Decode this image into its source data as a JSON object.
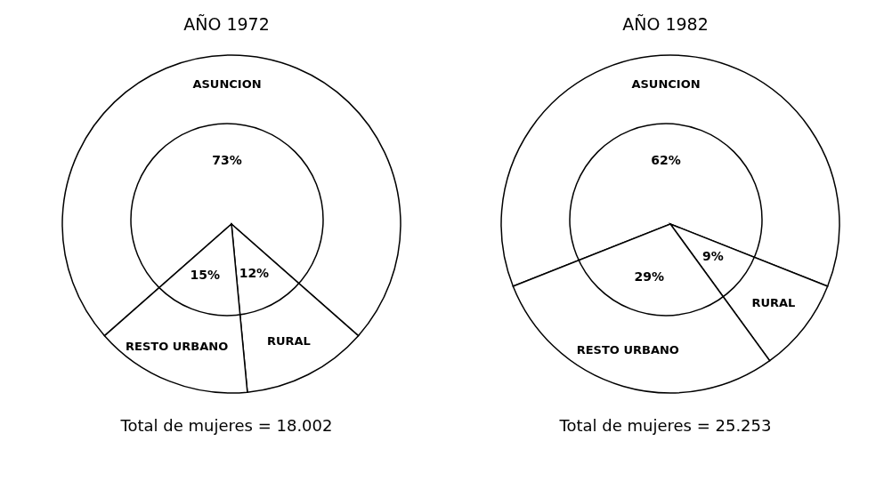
{
  "chart_data": [
    {
      "type": "pie",
      "title": "AÑO 1972",
      "categories": [
        "ASUNCION",
        "RURAL",
        "RESTO URBANO"
      ],
      "values": [
        73,
        12,
        15
      ],
      "value_labels": [
        "73%",
        "12%",
        "15%"
      ],
      "colors": [
        "#ffffff",
        "#ffffff",
        "#ffffff"
      ],
      "annotations": [
        "Total de mujeres = 18.002"
      ]
    },
    {
      "type": "pie",
      "title": "AÑO 1982",
      "categories": [
        "ASUNCION",
        "RURAL",
        "RESTO URBANO"
      ],
      "values": [
        62,
        9,
        29
      ],
      "value_labels": [
        "62%",
        "9%",
        "29%"
      ],
      "colors": [
        "#ffffff",
        "#ffffff",
        "#ffffff"
      ],
      "annotations": [
        "Total de mujeres = 25.253"
      ]
    }
  ]
}
